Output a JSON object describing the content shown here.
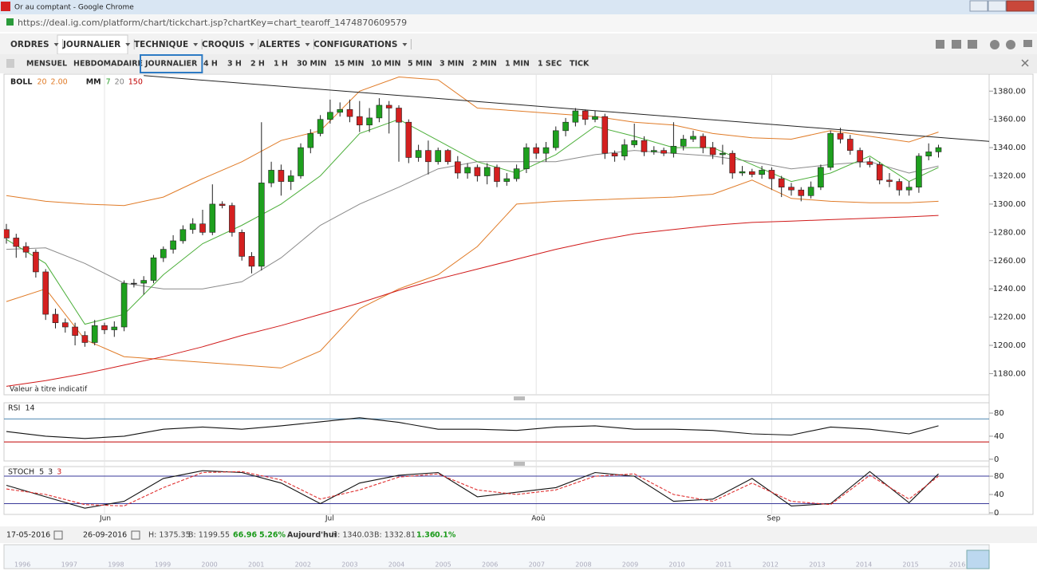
{
  "window": {
    "title": "Or au comptant - Google Chrome",
    "url": "https://deal.ig.com/platform/chart/tickchart.jsp?chartKey=chart_tearoff_1474870609579"
  },
  "menu": [
    "ORDRES",
    "JOURNALIER",
    "TECHNIQUE",
    "CROQUIS",
    "ALERTES",
    "CONFIGURATIONS"
  ],
  "timeframes": [
    "MENSUEL",
    "HEBDOMADAIRE",
    "JOURNALIER",
    "4 H",
    "3 H",
    "2 H",
    "1 H",
    "30 MIN",
    "15 MIN",
    "10 MIN",
    "5 MIN",
    "3 MIN",
    "2 MIN",
    "1 MIN",
    "1 SEC",
    "TICK"
  ],
  "active_timeframe": 2,
  "chart_data": [
    {
      "type": "candlestick",
      "note": "Valeur à titre indicatif",
      "indicators": [
        {
          "name": "BOLL",
          "params": [
            20,
            "2.00"
          ],
          "colors": [
            "#e07b27",
            "#e07b27"
          ]
        },
        {
          "name": "MM",
          "params": [
            7,
            20,
            150
          ],
          "colors": [
            "#2ca02c",
            "#808080",
            "#c00000"
          ]
        }
      ],
      "open": [
        1282,
        1276,
        1270,
        1266,
        1252,
        1222,
        1216,
        1213,
        1207,
        1202,
        1214,
        1211,
        1213,
        1244,
        1244,
        1246,
        1262,
        1268,
        1274,
        1282,
        1286,
        1280,
        1300,
        1299,
        1280,
        1263,
        1256,
        1315,
        1324,
        1316,
        1320,
        1340,
        1350,
        1360,
        1365,
        1367,
        1362,
        1356,
        1361,
        1370,
        1368,
        1358,
        1333,
        1338,
        1330,
        1338,
        1330,
        1322,
        1326,
        1320,
        1326,
        1316,
        1318,
        1325,
        1340,
        1336,
        1340,
        1352,
        1358,
        1366,
        1360,
        1362,
        1336,
        1334,
        1342,
        1345,
        1337,
        1338,
        1336,
        1341,
        1346,
        1348,
        1340,
        1335,
        1336,
        1322,
        1323,
        1321,
        1324,
        1318,
        1312,
        1310,
        1306,
        1312,
        1326,
        1350,
        1346,
        1338,
        1330,
        1328,
        1317,
        1316,
        1310,
        1312,
        1334,
        1337
      ],
      "high": [
        1286,
        1279,
        1273,
        1268,
        1254,
        1226,
        1219,
        1216,
        1210,
        1218,
        1216,
        1217,
        1246,
        1247,
        1249,
        1264,
        1270,
        1278,
        1285,
        1290,
        1296,
        1314,
        1302,
        1301,
        1282,
        1266,
        1358,
        1330,
        1328,
        1324,
        1343,
        1353,
        1363,
        1374,
        1372,
        1374,
        1373,
        1368,
        1375,
        1373,
        1370,
        1360,
        1342,
        1345,
        1340,
        1339,
        1334,
        1329,
        1328,
        1329,
        1328,
        1322,
        1328,
        1343,
        1343,
        1344,
        1355,
        1361,
        1368,
        1367,
        1366,
        1364,
        1338,
        1346,
        1357,
        1348,
        1341,
        1340,
        1358,
        1349,
        1352,
        1350,
        1344,
        1342,
        1338,
        1327,
        1325,
        1327,
        1326,
        1320,
        1315,
        1312,
        1316,
        1328,
        1352,
        1354,
        1349,
        1340,
        1333,
        1330,
        1322,
        1318,
        1316,
        1336,
        1343,
        1342
      ],
      "low": [
        1272,
        1262,
        1262,
        1248,
        1218,
        1212,
        1209,
        1200,
        1199,
        1200,
        1208,
        1206,
        1210,
        1241,
        1236,
        1244,
        1259,
        1265,
        1272,
        1279,
        1278,
        1278,
        1297,
        1277,
        1260,
        1251,
        1253,
        1312,
        1306,
        1310,
        1318,
        1336,
        1348,
        1357,
        1362,
        1358,
        1351,
        1351,
        1358,
        1350,
        1330,
        1329,
        1330,
        1321,
        1328,
        1328,
        1318,
        1318,
        1316,
        1314,
        1312,
        1313,
        1316,
        1322,
        1332,
        1330,
        1338,
        1348,
        1355,
        1356,
        1358,
        1332,
        1330,
        1331,
        1340,
        1334,
        1335,
        1334,
        1333,
        1338,
        1344,
        1336,
        1332,
        1328,
        1318,
        1320,
        1319,
        1318,
        1310,
        1305,
        1306,
        1302,
        1304,
        1310,
        1324,
        1343,
        1335,
        1326,
        1326,
        1314,
        1312,
        1306,
        1306,
        1308,
        1331,
        1333
      ],
      "close": [
        1276,
        1270,
        1266,
        1252,
        1222,
        1216,
        1213,
        1207,
        1202,
        1214,
        1211,
        1213,
        1244,
        1244,
        1246,
        1262,
        1268,
        1274,
        1282,
        1286,
        1280,
        1300,
        1299,
        1280,
        1263,
        1256,
        1315,
        1324,
        1316,
        1320,
        1340,
        1350,
        1360,
        1365,
        1367,
        1362,
        1356,
        1361,
        1370,
        1368,
        1358,
        1333,
        1338,
        1330,
        1338,
        1330,
        1322,
        1326,
        1320,
        1326,
        1316,
        1318,
        1325,
        1340,
        1336,
        1340,
        1352,
        1358,
        1366,
        1360,
        1362,
        1336,
        1334,
        1342,
        1345,
        1337,
        1338,
        1336,
        1341,
        1346,
        1348,
        1340,
        1335,
        1336,
        1322,
        1323,
        1321,
        1324,
        1318,
        1312,
        1310,
        1306,
        1312,
        1326,
        1350,
        1346,
        1338,
        1330,
        1328,
        1317,
        1316,
        1310,
        1312,
        1334,
        1337,
        1340
      ],
      "overlay_x": [
        0,
        4,
        8,
        12,
        16,
        20,
        24,
        28,
        32,
        36,
        40,
        44,
        48,
        52,
        56,
        60,
        64,
        68,
        72,
        76,
        80,
        84,
        88,
        92,
        95
      ],
      "overlays": [
        {
          "color": "#e07b27",
          "values": [
            1306,
            1302,
            1300,
            1299,
            1305,
            1318,
            1330,
            1345,
            1352,
            1380,
            1390,
            1388,
            1368,
            1366,
            1364,
            1362,
            1358,
            1356,
            1350,
            1347,
            1346,
            1352,
            1348,
            1344,
            1351
          ]
        },
        {
          "color": "#e07b27",
          "values": [
            1231,
            1240,
            1204,
            1192,
            1190,
            1188,
            1186,
            1184,
            1196,
            1226,
            1240,
            1250,
            1270,
            1300,
            1302,
            1303,
            1304,
            1305,
            1307,
            1317,
            1304,
            1302,
            1301,
            1301,
            1302
          ]
        },
        {
          "color": "#8a8a8a",
          "values": [
            1268,
            1269,
            1258,
            1244,
            1240,
            1240,
            1245,
            1262,
            1285,
            1300,
            1312,
            1325,
            1330,
            1330,
            1330,
            1335,
            1338,
            1336,
            1334,
            1330,
            1325,
            1328,
            1330,
            1322,
            1327
          ]
        },
        {
          "color": "#4caf3a",
          "values": [
            1275,
            1258,
            1215,
            1222,
            1250,
            1272,
            1285,
            1300,
            1320,
            1350,
            1360,
            1345,
            1330,
            1322,
            1335,
            1355,
            1348,
            1340,
            1340,
            1328,
            1316,
            1322,
            1334,
            1316,
            1326
          ]
        },
        {
          "color": "#d01818",
          "values": [
            1171,
            1175,
            1180,
            1186,
            1192,
            1199,
            1207,
            1214,
            1222,
            1230,
            1239,
            1247,
            1254,
            1261,
            1268,
            1274,
            1279,
            1282,
            1285,
            1287,
            1288,
            1289,
            1290,
            1291,
            1292
          ]
        }
      ],
      "trendline": {
        "color": "#222222",
        "x": [
          14,
          101
        ],
        "values": [
          1391,
          1344
        ]
      },
      "ylim": [
        1165,
        1392
      ],
      "yticks": [
        {
          "value": 1180,
          "label": "1180.00"
        },
        {
          "value": 1200,
          "label": "1200.00"
        },
        {
          "value": 1220,
          "label": "1220.00"
        },
        {
          "value": 1240,
          "label": "1240.00"
        },
        {
          "value": 1260,
          "label": "1260.00"
        },
        {
          "value": 1280,
          "label": "1280.00"
        },
        {
          "value": 1300,
          "label": "1300.00"
        },
        {
          "value": 1320,
          "label": "1320.00"
        },
        {
          "value": 1340,
          "label": "1340.00"
        },
        {
          "value": 1360,
          "label": "1360.00"
        },
        {
          "value": 1380,
          "label": "1380.00"
        }
      ],
      "xticks": [
        {
          "value": 10,
          "label": "Jun"
        },
        {
          "value": 33,
          "label": "Jul"
        },
        {
          "value": 54,
          "label": "Aoû"
        },
        {
          "value": 78,
          "label": "Sep"
        }
      ],
      "grid": true
    },
    {
      "type": "line",
      "title": "RSI",
      "params": [
        14
      ],
      "param_colors": [
        "#222222"
      ],
      "x": [
        0,
        4,
        8,
        12,
        16,
        20,
        24,
        28,
        32,
        36,
        40,
        44,
        48,
        52,
        56,
        60,
        64,
        68,
        72,
        76,
        80,
        84,
        88,
        92,
        95
      ],
      "series": [
        {
          "color": "#111111",
          "values": [
            48,
            40,
            36,
            40,
            52,
            56,
            52,
            58,
            65,
            72,
            64,
            52,
            52,
            50,
            56,
            58,
            52,
            52,
            50,
            44,
            42,
            56,
            52,
            44,
            58
          ]
        }
      ],
      "levels": [
        {
          "value": 70,
          "color": "#4a86b0"
        },
        {
          "value": 30,
          "color": "#c00000"
        }
      ],
      "ylim": [
        -3,
        98
      ],
      "yticks": [
        0,
        40,
        80
      ]
    },
    {
      "type": "line",
      "title": "STOCH",
      "params": [
        5,
        3,
        3
      ],
      "param_colors": [
        "#222222",
        "#222222",
        "#d01818"
      ],
      "x": [
        0,
        4,
        8,
        12,
        16,
        20,
        24,
        28,
        32,
        36,
        40,
        44,
        48,
        52,
        56,
        60,
        64,
        68,
        72,
        76,
        80,
        84,
        88,
        92,
        95
      ],
      "series": [
        {
          "color": "#111111",
          "values": [
            60,
            35,
            10,
            25,
            75,
            92,
            88,
            65,
            20,
            65,
            82,
            88,
            35,
            45,
            55,
            88,
            80,
            25,
            30,
            75,
            15,
            20,
            90,
            22,
            85
          ]
        },
        {
          "color": "#e03030",
          "dashed": true,
          "values": [
            52,
            40,
            18,
            15,
            55,
            88,
            90,
            72,
            30,
            50,
            78,
            85,
            50,
            40,
            50,
            80,
            85,
            40,
            25,
            65,
            25,
            18,
            82,
            30,
            80
          ]
        }
      ],
      "levels": [
        {
          "value": 80,
          "color": "#3a3a9a"
        },
        {
          "value": 20,
          "color": "#3a3a9a"
        }
      ],
      "ylim": [
        -3.5,
        101
      ],
      "yticks": [
        0,
        40,
        80
      ]
    }
  ],
  "info_bar": {
    "from": "17-05-2016",
    "to": "26-09-2016",
    "high": "H: 1375.35",
    "low": "B: 1199.55",
    "change": "66.96",
    "change_pct": "5.26%",
    "today": "Aujourd'hui",
    "today_high": "H: 1340.03",
    "today_low": "B: 1332.81",
    "today_change": "1.36",
    "today_change_pct": "0.1%"
  },
  "years": [
    1996,
    1997,
    1998,
    1999,
    2000,
    2001,
    2002,
    2003,
    2004,
    2005,
    2006,
    2007,
    2008,
    2009,
    2010,
    2011,
    2012,
    2013,
    2014,
    2015,
    2016
  ]
}
